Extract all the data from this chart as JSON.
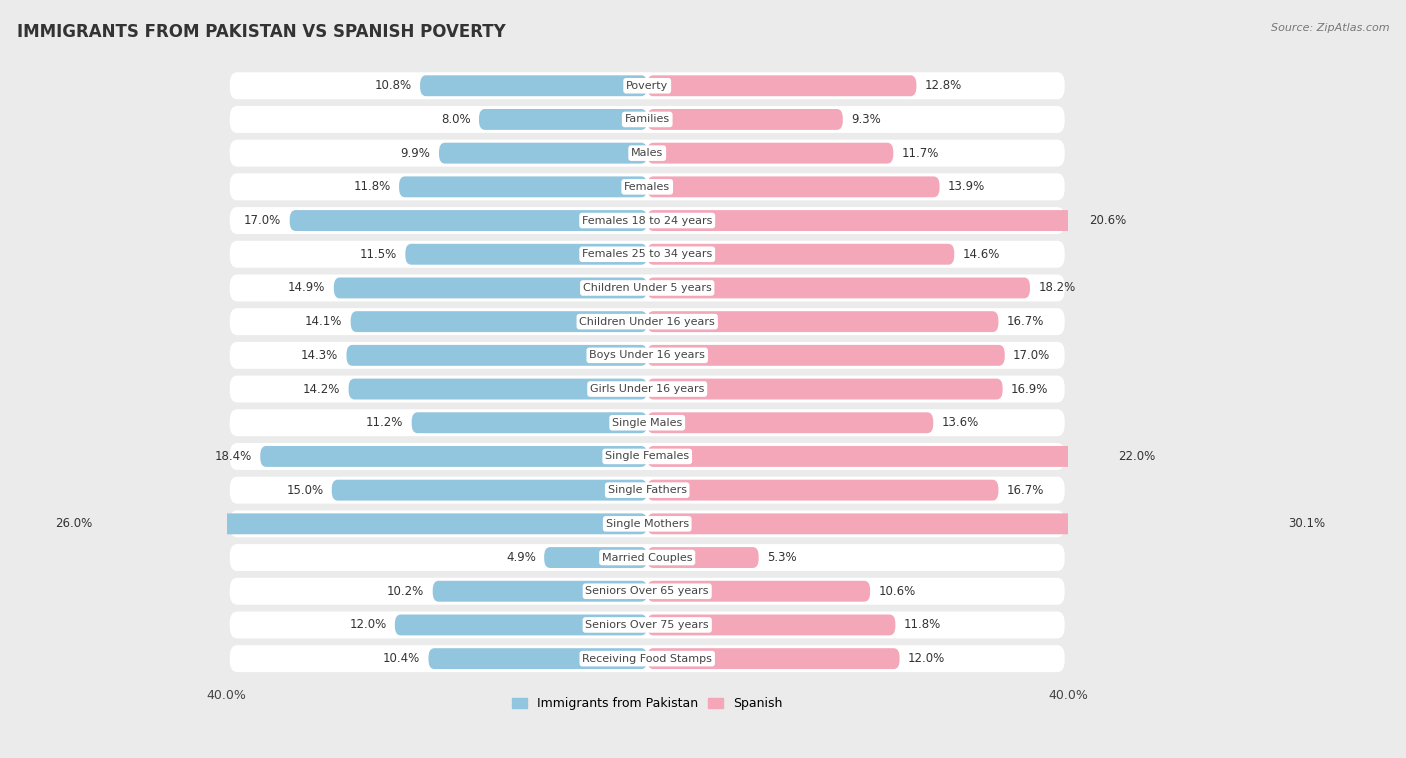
{
  "title": "IMMIGRANTS FROM PAKISTAN VS SPANISH POVERTY",
  "source": "Source: ZipAtlas.com",
  "categories": [
    "Poverty",
    "Families",
    "Males",
    "Females",
    "Females 18 to 24 years",
    "Females 25 to 34 years",
    "Children Under 5 years",
    "Children Under 16 years",
    "Boys Under 16 years",
    "Girls Under 16 years",
    "Single Males",
    "Single Females",
    "Single Fathers",
    "Single Mothers",
    "Married Couples",
    "Seniors Over 65 years",
    "Seniors Over 75 years",
    "Receiving Food Stamps"
  ],
  "pakistan_values": [
    10.8,
    8.0,
    9.9,
    11.8,
    17.0,
    11.5,
    14.9,
    14.1,
    14.3,
    14.2,
    11.2,
    18.4,
    15.0,
    26.0,
    4.9,
    10.2,
    12.0,
    10.4
  ],
  "spanish_values": [
    12.8,
    9.3,
    11.7,
    13.9,
    20.6,
    14.6,
    18.2,
    16.7,
    17.0,
    16.9,
    13.6,
    22.0,
    16.7,
    30.1,
    5.3,
    10.6,
    11.8,
    12.0
  ],
  "pakistan_color": "#92c5de",
  "spanish_color": "#f4a7b9",
  "background_color": "#ebebeb",
  "bar_background": "#ffffff",
  "legend_labels": [
    "Immigrants from Pakistan",
    "Spanish"
  ]
}
